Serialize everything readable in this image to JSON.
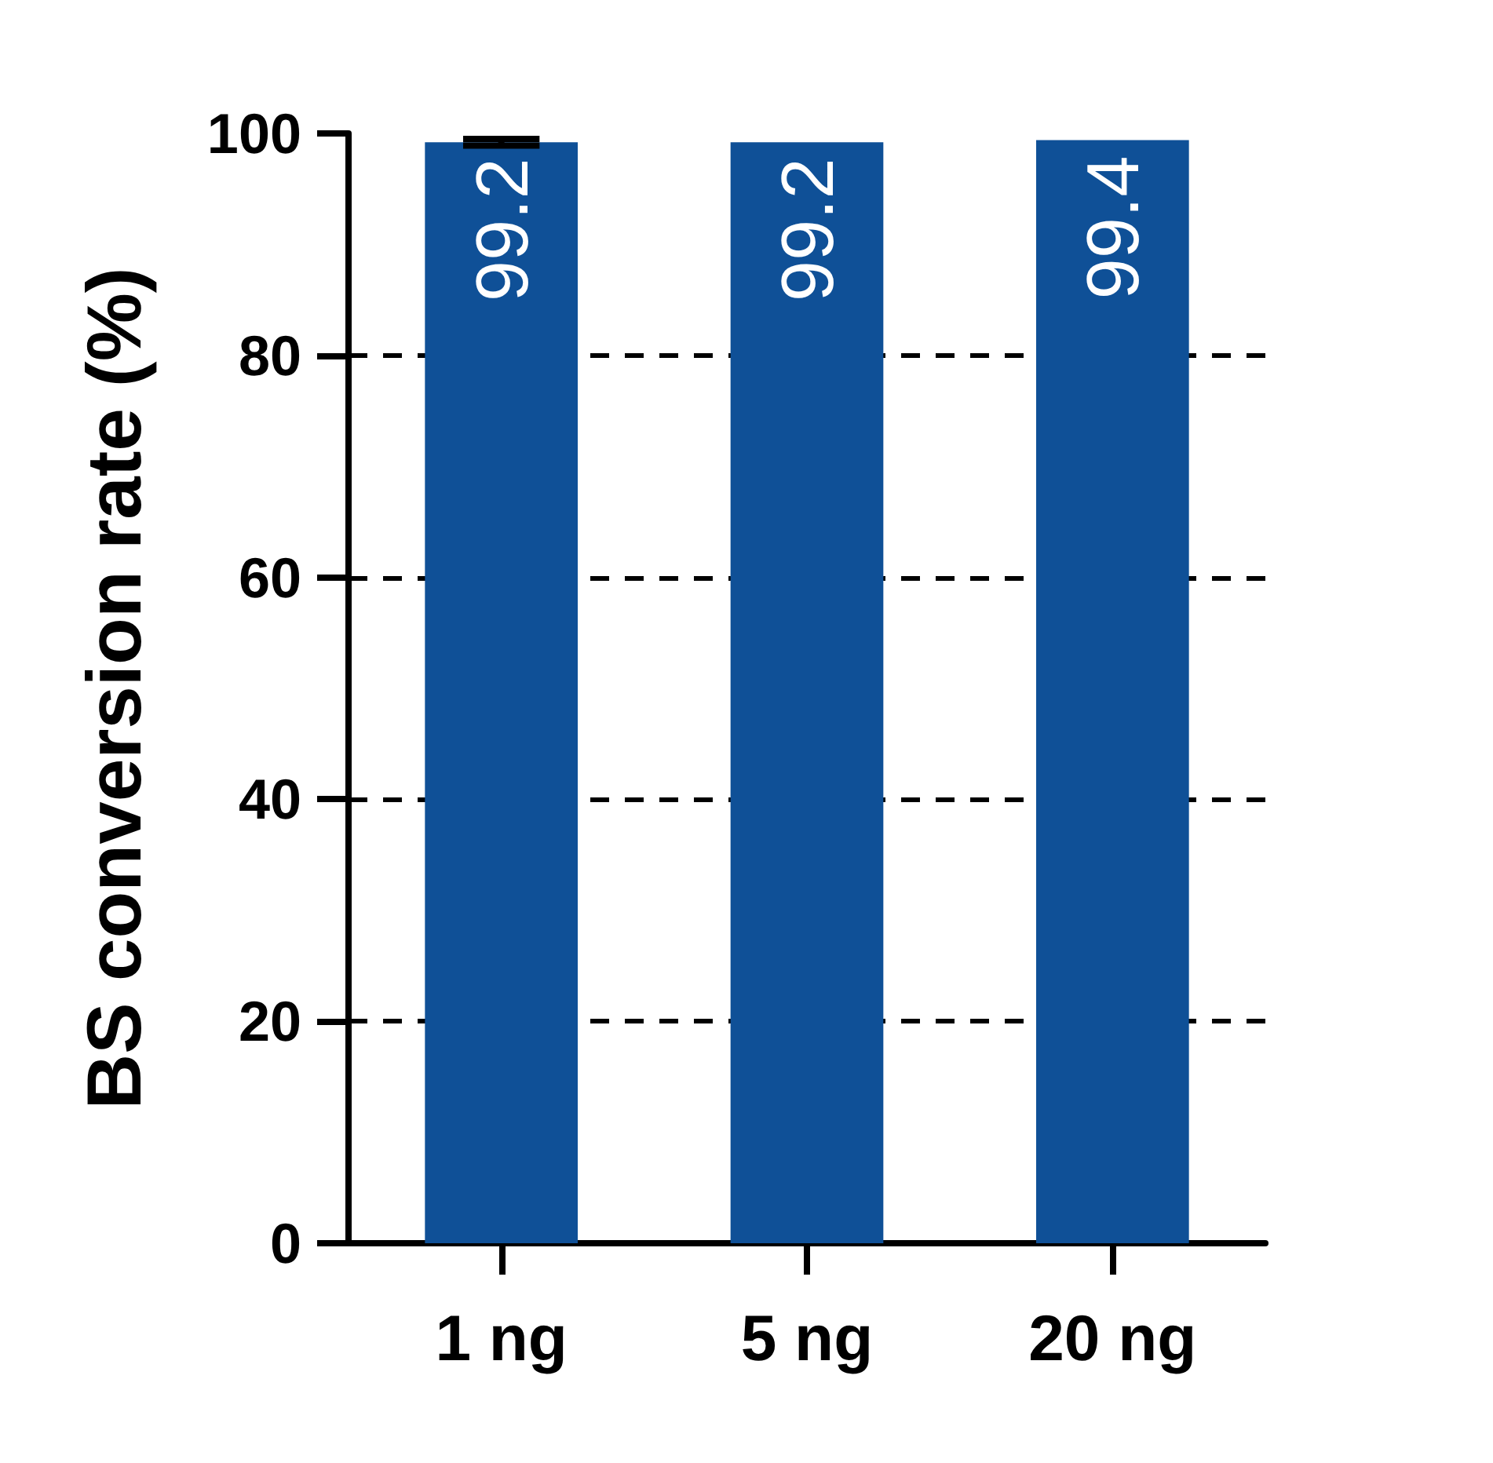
{
  "chart_data": {
    "type": "bar",
    "ylabel": "BS conversion rate (%)",
    "categories": [
      "1 ng",
      "5 ng",
      "20 ng"
    ],
    "values": [
      99.2,
      99.2,
      99.4
    ],
    "color": "#0f5097",
    "errors": [
      0.3,
      null,
      null
    ],
    "ylim": [
      0,
      100
    ],
    "yticks": [
      0,
      20,
      40,
      60,
      80,
      100
    ],
    "grid": "y",
    "data_labels": true
  }
}
